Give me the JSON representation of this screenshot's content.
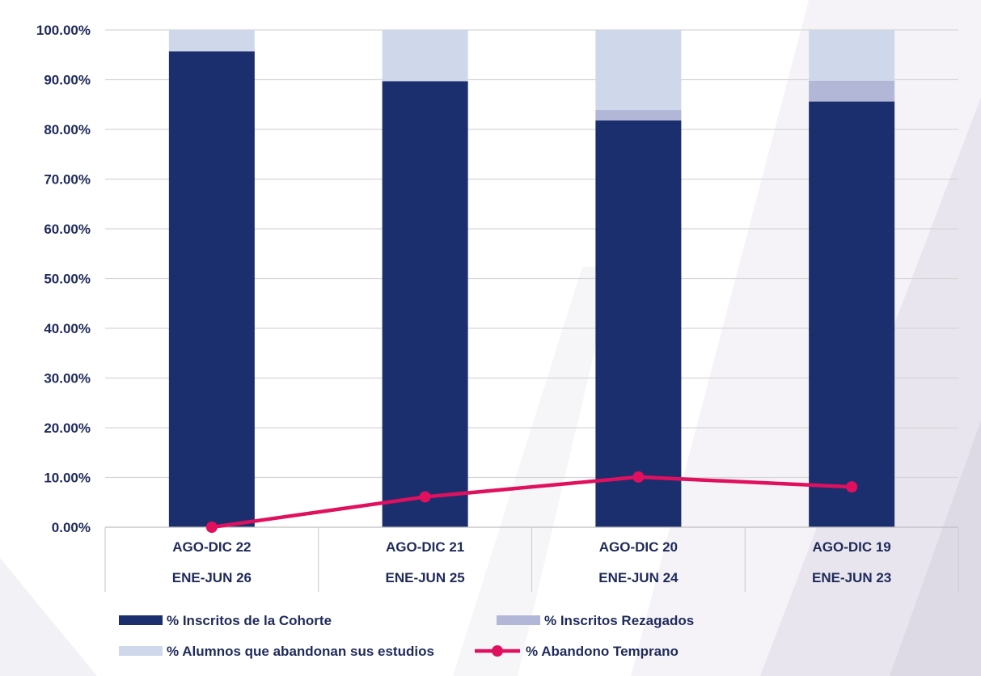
{
  "chart_data": {
    "type": "bar",
    "stacked": true,
    "categories": [
      [
        "AGO-DIC 22",
        "ENE-JUN 26"
      ],
      [
        "AGO-DIC 21",
        "ENE-JUN 25"
      ],
      [
        "AGO-DIC 20",
        "ENE-JUN 24"
      ],
      [
        "AGO-DIC 19",
        "ENE-JUN 23"
      ]
    ],
    "series": [
      {
        "name": "% Inscritos de la Cohorte",
        "kind": "bar",
        "color": "#1b2f6e",
        "values": [
          95.7,
          89.7,
          81.8,
          85.6
        ]
      },
      {
        "name": "% Inscritos Rezagados",
        "kind": "bar",
        "color": "#b2b7d8",
        "values": [
          0.0,
          0.0,
          2.1,
          4.2
        ]
      },
      {
        "name": "% Alumnos que abandonan sus estudios",
        "kind": "bar",
        "color": "#cfd8ea",
        "values": [
          4.3,
          10.3,
          16.1,
          10.2
        ]
      },
      {
        "name": "% Abandono Temprano",
        "kind": "line",
        "color": "#e0105f",
        "values": [
          0.0,
          6.1,
          10.1,
          8.1
        ]
      }
    ],
    "yticks": [
      "0.00%",
      "10.00%",
      "20.00%",
      "30.00%",
      "40.00%",
      "50.00%",
      "60.00%",
      "70.00%",
      "80.00%",
      "90.00%",
      "100.00%"
    ],
    "ylim": [
      0,
      100
    ],
    "grid": true,
    "legend_position": "bottom",
    "xlabel": "",
    "ylabel": ""
  }
}
